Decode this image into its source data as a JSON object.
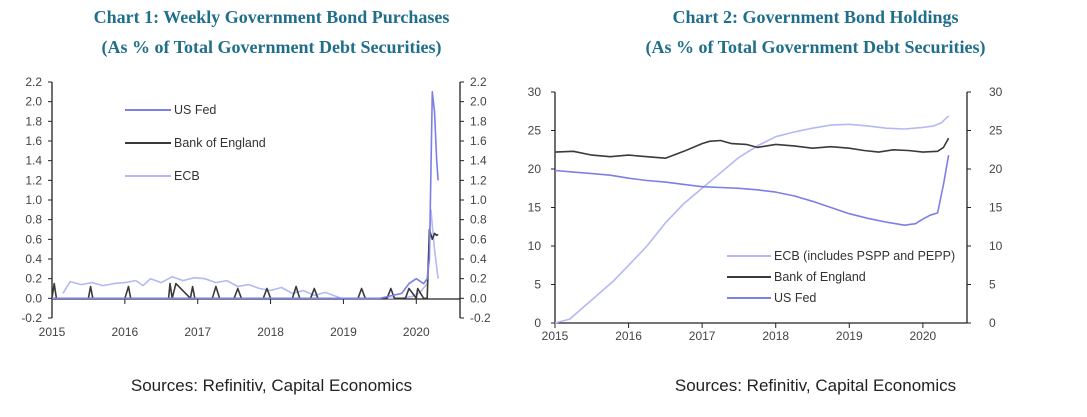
{
  "chart_data": [
    {
      "type": "line",
      "title": "Chart 1: Weekly Government Bond Purchases",
      "subtitle": "(As % of Total Government Debt Securities)",
      "source": "Sources: Refinitiv, Capital Economics",
      "xlabel": "",
      "ylabel": "",
      "xlim": [
        2015.0,
        2020.6
      ],
      "ylim": [
        -0.2,
        2.2
      ],
      "x_ticks": [
        2015,
        2016,
        2017,
        2018,
        2019,
        2020
      ],
      "x_tick_labels": [
        "2015",
        "2016",
        "2017",
        "2018",
        "2019",
        "2020"
      ],
      "y_ticks": [
        -0.2,
        0.0,
        0.2,
        0.4,
        0.6,
        0.8,
        1.0,
        1.2,
        1.4,
        1.6,
        1.8,
        2.0,
        2.2
      ],
      "y_tick_labels": [
        "-0.2",
        "0.0",
        "0.2",
        "0.4",
        "0.6",
        "0.8",
        "1.0",
        "1.2",
        "1.4",
        "1.6",
        "1.8",
        "2.0",
        "2.2"
      ],
      "right_axis": true,
      "grid": false,
      "legend_position": "top-left",
      "series": [
        {
          "name": "ECB",
          "color": "#b4b8f4",
          "x": [
            2015.15,
            2015.25,
            2015.4,
            2015.55,
            2015.7,
            2015.85,
            2016.0,
            2016.15,
            2016.25,
            2016.35,
            2016.5,
            2016.65,
            2016.8,
            2016.95,
            2017.1,
            2017.25,
            2017.4,
            2017.55,
            2017.7,
            2017.85,
            2018.0,
            2018.15,
            2018.3,
            2018.45,
            2018.6,
            2018.75,
            2018.9,
            2018.97,
            2019.05,
            2019.2,
            2019.4,
            2019.6,
            2019.8,
            2019.95,
            2020.05,
            2020.15,
            2020.2,
            2020.25,
            2020.3
          ],
          "values": [
            0.05,
            0.17,
            0.14,
            0.16,
            0.13,
            0.15,
            0.16,
            0.18,
            0.13,
            0.2,
            0.16,
            0.22,
            0.18,
            0.21,
            0.2,
            0.16,
            0.18,
            0.12,
            0.14,
            0.1,
            0.08,
            0.11,
            0.05,
            0.08,
            0.03,
            0.06,
            0.02,
            0.0,
            0.0,
            0.0,
            0.0,
            0.0,
            0.0,
            0.02,
            0.06,
            0.15,
            0.9,
            0.5,
            0.2
          ]
        },
        {
          "name": "Bank of England",
          "color": "#3a3a3a",
          "x": [
            2015.0,
            2015.03,
            2015.06,
            2015.1,
            2015.5,
            2015.53,
            2015.56,
            2015.6,
            2016.0,
            2016.05,
            2016.08,
            2016.6,
            2016.62,
            2016.65,
            2016.7,
            2016.9,
            2016.93,
            2016.96,
            2017.2,
            2017.25,
            2017.3,
            2017.5,
            2017.55,
            2017.6,
            2017.9,
            2017.95,
            2018.0,
            2018.3,
            2018.35,
            2018.4,
            2018.55,
            2018.6,
            2018.65,
            2019.2,
            2019.25,
            2019.3,
            2019.6,
            2019.65,
            2019.7,
            2019.85,
            2019.9,
            2020.0,
            2020.02,
            2020.1,
            2020.15,
            2020.18,
            2020.22,
            2020.25,
            2020.28,
            2020.3
          ],
          "values": [
            0.0,
            0.15,
            0.0,
            0.0,
            0.0,
            0.12,
            0.0,
            0.0,
            0.0,
            0.12,
            0.0,
            0.0,
            0.15,
            0.0,
            0.15,
            0.0,
            0.12,
            0.0,
            0.0,
            0.12,
            0.0,
            0.0,
            0.1,
            0.0,
            0.0,
            0.1,
            0.0,
            0.0,
            0.12,
            0.0,
            0.0,
            0.1,
            0.0,
            0.0,
            0.1,
            0.0,
            0.0,
            0.1,
            0.0,
            0.0,
            0.1,
            0.0,
            0.1,
            0.0,
            0.0,
            0.7,
            0.6,
            0.66,
            0.64,
            0.65
          ]
        },
        {
          "name": "US Fed",
          "color": "#7b7fe8",
          "x": [
            2015.0,
            2015.6,
            2016.2,
            2016.8,
            2017.4,
            2018.0,
            2018.5,
            2019.0,
            2019.5,
            2019.8,
            2019.9,
            2020.0,
            2020.1,
            2020.15,
            2020.18,
            2020.22,
            2020.25,
            2020.28,
            2020.3
          ],
          "values": [
            0.0,
            0.0,
            0.0,
            0.0,
            0.0,
            0.0,
            0.0,
            0.0,
            0.0,
            0.05,
            0.15,
            0.2,
            0.15,
            0.2,
            0.4,
            2.1,
            1.9,
            1.4,
            1.2
          ]
        }
      ]
    },
    {
      "type": "line",
      "title": "Chart 2: Government Bond Holdings",
      "subtitle": "(As % of Total Government Debt Securities)",
      "source": "Sources: Refinitiv, Capital Economics",
      "xlabel": "",
      "ylabel": "",
      "xlim": [
        2015.0,
        2020.6
      ],
      "ylim": [
        0,
        30
      ],
      "x_ticks": [
        2015,
        2016,
        2017,
        2018,
        2019,
        2020
      ],
      "x_tick_labels": [
        "2015",
        "2016",
        "2017",
        "2018",
        "2019",
        "2020"
      ],
      "y_ticks": [
        0,
        5,
        10,
        15,
        20,
        25,
        30
      ],
      "y_tick_labels": [
        "0",
        "5",
        "10",
        "15",
        "20",
        "25",
        "30"
      ],
      "right_axis": true,
      "grid": false,
      "legend_position": "bottom-right",
      "series": [
        {
          "name": "ECB (includes PSPP and PEPP)",
          "color": "#b4b8f4",
          "x": [
            2015.0,
            2015.2,
            2015.5,
            2015.8,
            2016.0,
            2016.25,
            2016.5,
            2016.75,
            2017.0,
            2017.25,
            2017.5,
            2017.75,
            2018.0,
            2018.25,
            2018.5,
            2018.75,
            2019.0,
            2019.25,
            2019.5,
            2019.75,
            2020.0,
            2020.15,
            2020.25,
            2020.35
          ],
          "values": [
            0.0,
            0.5,
            3.0,
            5.5,
            7.5,
            10.0,
            13.0,
            15.5,
            17.5,
            19.5,
            21.5,
            23.0,
            24.2,
            24.8,
            25.3,
            25.7,
            25.8,
            25.6,
            25.3,
            25.2,
            25.4,
            25.6,
            26.0,
            26.9
          ]
        },
        {
          "name": "Bank of England",
          "color": "#3a3a3a",
          "x": [
            2015.0,
            2015.25,
            2015.5,
            2015.75,
            2016.0,
            2016.25,
            2016.5,
            2016.75,
            2017.0,
            2017.1,
            2017.25,
            2017.4,
            2017.6,
            2017.75,
            2018.0,
            2018.25,
            2018.5,
            2018.75,
            2019.0,
            2019.2,
            2019.4,
            2019.6,
            2019.8,
            2020.0,
            2020.2,
            2020.28,
            2020.35
          ],
          "values": [
            22.2,
            22.3,
            21.8,
            21.6,
            21.8,
            21.6,
            21.4,
            22.3,
            23.3,
            23.6,
            23.7,
            23.3,
            23.2,
            22.8,
            23.2,
            23.0,
            22.7,
            22.9,
            22.7,
            22.4,
            22.2,
            22.5,
            22.4,
            22.2,
            22.3,
            22.8,
            24.0
          ]
        },
        {
          "name": "US Fed",
          "color": "#7b7fe8",
          "x": [
            2015.0,
            2015.25,
            2015.5,
            2015.75,
            2016.0,
            2016.25,
            2016.5,
            2016.75,
            2017.0,
            2017.25,
            2017.5,
            2017.75,
            2018.0,
            2018.25,
            2018.5,
            2018.75,
            2019.0,
            2019.25,
            2019.5,
            2019.75,
            2019.9,
            2020.0,
            2020.1,
            2020.2,
            2020.28,
            2020.35
          ],
          "values": [
            19.8,
            19.6,
            19.4,
            19.2,
            18.8,
            18.5,
            18.3,
            18.0,
            17.7,
            17.6,
            17.5,
            17.3,
            17.0,
            16.5,
            15.8,
            15.0,
            14.2,
            13.6,
            13.1,
            12.7,
            12.9,
            13.5,
            14.0,
            14.3,
            18.0,
            21.8
          ]
        }
      ]
    }
  ]
}
